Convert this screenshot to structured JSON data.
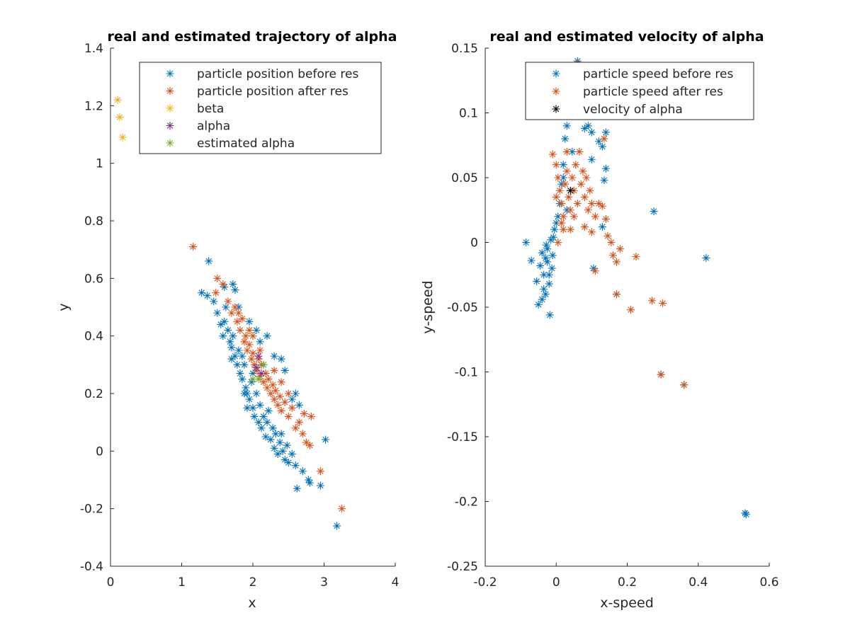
{
  "chart_data": [
    {
      "type": "scatter",
      "title": "real and estimated trajectory of alpha",
      "xlabel": "x",
      "ylabel": "y",
      "xlim": [
        0,
        4
      ],
      "ylim": [
        -0.4,
        1.4
      ],
      "xticks": [
        0,
        1,
        2,
        3,
        4
      ],
      "yticks": [
        -0.4,
        -0.2,
        0,
        0.2,
        0.4,
        0.6,
        0.8,
        1,
        1.2,
        1.4
      ],
      "xtick_labels": [
        "0",
        "1",
        "2",
        "3",
        "4"
      ],
      "ytick_labels": [
        "-0.4",
        "-0.2",
        "0",
        "0.2",
        "0.4",
        "0.6",
        "0.8",
        "1",
        "1.2",
        "1.4"
      ],
      "legend_position": "top-right",
      "series": [
        {
          "name": "particle position before res",
          "color": "#0072BD",
          "points": [
            [
              1.28,
              0.55
            ],
            [
              1.36,
              0.54
            ],
            [
              1.38,
              0.66
            ],
            [
              1.45,
              0.52
            ],
            [
              1.5,
              0.48
            ],
            [
              1.55,
              0.44
            ],
            [
              1.58,
              0.4
            ],
            [
              1.6,
              0.45
            ],
            [
              1.62,
              0.5
            ],
            [
              1.65,
              0.42
            ],
            [
              1.68,
              0.38
            ],
            [
              1.7,
              0.36
            ],
            [
              1.72,
              0.4
            ],
            [
              1.75,
              0.33
            ],
            [
              1.78,
              0.3
            ],
            [
              1.8,
              0.35
            ],
            [
              1.82,
              0.27
            ],
            [
              1.85,
              0.25
            ],
            [
              1.88,
              0.3
            ],
            [
              1.9,
              0.22
            ],
            [
              1.92,
              0.2
            ],
            [
              1.95,
              0.18
            ],
            [
              1.98,
              0.24
            ],
            [
              2.0,
              0.15
            ],
            [
              2.02,
              0.12
            ],
            [
              2.05,
              0.2
            ],
            [
              2.08,
              0.1
            ],
            [
              2.1,
              0.16
            ],
            [
              2.12,
              0.08
            ],
            [
              2.15,
              0.12
            ],
            [
              2.18,
              0.05
            ],
            [
              2.2,
              0.1
            ],
            [
              2.22,
              0.14
            ],
            [
              2.25,
              0.04
            ],
            [
              2.28,
              0.08
            ],
            [
              2.3,
              0.01
            ],
            [
              2.32,
              0.06
            ],
            [
              2.35,
              -0.01
            ],
            [
              2.38,
              0.03
            ],
            [
              2.4,
              0.06
            ],
            [
              2.42,
              0.0
            ],
            [
              2.45,
              -0.03
            ],
            [
              2.48,
              0.02
            ],
            [
              2.5,
              -0.04
            ],
            [
              2.55,
              -0.01
            ],
            [
              2.6,
              -0.05
            ],
            [
              2.62,
              -0.13
            ],
            [
              2.7,
              -0.07
            ],
            [
              2.78,
              -0.1
            ],
            [
              2.8,
              -0.11
            ],
            [
              2.95,
              -0.12
            ],
            [
              3.02,
              0.04
            ],
            [
              3.18,
              -0.26
            ],
            [
              2.55,
              0.18
            ],
            [
              2.6,
              0.2
            ],
            [
              2.65,
              0.16
            ],
            [
              2.4,
              0.32
            ],
            [
              2.45,
              0.28
            ],
            [
              2.3,
              0.33
            ],
            [
              2.2,
              0.4
            ],
            [
              1.75,
              0.56
            ],
            [
              1.72,
              0.58
            ],
            [
              1.6,
              0.57
            ],
            [
              1.8,
              0.5
            ],
            [
              1.95,
              0.45
            ],
            [
              2.05,
              0.42
            ],
            [
              2.1,
              0.38
            ],
            [
              2.15,
              0.3
            ],
            [
              1.88,
              0.2
            ],
            [
              1.92,
              0.15
            ],
            [
              2.0,
              0.27
            ],
            [
              1.7,
              0.32
            ],
            [
              1.85,
              0.33
            ]
          ]
        },
        {
          "name": "particle position after res",
          "color": "#D95319",
          "points": [
            [
              1.16,
              0.71
            ],
            [
              1.48,
              0.55
            ],
            [
              1.5,
              0.6
            ],
            [
              1.58,
              0.58
            ],
            [
              1.65,
              0.52
            ],
            [
              1.7,
              0.48
            ],
            [
              1.75,
              0.5
            ],
            [
              1.78,
              0.45
            ],
            [
              1.82,
              0.42
            ],
            [
              1.85,
              0.46
            ],
            [
              1.88,
              0.38
            ],
            [
              1.9,
              0.4
            ],
            [
              1.92,
              0.35
            ],
            [
              1.95,
              0.37
            ],
            [
              1.98,
              0.32
            ],
            [
              2.0,
              0.34
            ],
            [
              2.02,
              0.3
            ],
            [
              2.05,
              0.28
            ],
            [
              2.08,
              0.32
            ],
            [
              2.1,
              0.26
            ],
            [
              2.12,
              0.3
            ],
            [
              2.15,
              0.24
            ],
            [
              2.18,
              0.27
            ],
            [
              2.2,
              0.22
            ],
            [
              2.22,
              0.25
            ],
            [
              2.25,
              0.2
            ],
            [
              2.28,
              0.23
            ],
            [
              2.3,
              0.18
            ],
            [
              2.32,
              0.21
            ],
            [
              2.35,
              0.16
            ],
            [
              2.38,
              0.19
            ],
            [
              2.4,
              0.14
            ],
            [
              2.45,
              0.17
            ],
            [
              2.5,
              0.12
            ],
            [
              2.55,
              0.15
            ],
            [
              2.6,
              0.08
            ],
            [
              2.65,
              0.1
            ],
            [
              2.7,
              0.06
            ],
            [
              2.75,
              0.03
            ],
            [
              2.8,
              0.02
            ],
            [
              2.82,
              0.12
            ],
            [
              2.72,
              0.13
            ],
            [
              2.95,
              -0.07
            ],
            [
              3.25,
              -0.2
            ],
            [
              2.0,
              0.4
            ],
            [
              2.1,
              0.35
            ],
            [
              2.3,
              0.28
            ],
            [
              2.4,
              0.24
            ],
            [
              2.5,
              0.2
            ],
            [
              1.8,
              0.48
            ],
            [
              1.95,
              0.42
            ]
          ]
        },
        {
          "name": "beta",
          "color": "#EDB120",
          "points": [
            [
              0.1,
              1.22
            ],
            [
              0.13,
              1.16
            ],
            [
              0.17,
              1.09
            ]
          ]
        },
        {
          "name": "alpha",
          "color": "#7E2F8E",
          "points": [
            [
              2.08,
              0.33
            ],
            [
              2.05,
              0.29
            ],
            [
              2.12,
              0.27
            ]
          ]
        },
        {
          "name": "estimated alpha",
          "color": "#77AC30",
          "points": [
            [
              2.0,
              0.25
            ],
            [
              2.08,
              0.25
            ],
            [
              2.15,
              0.3
            ]
          ]
        }
      ]
    },
    {
      "type": "scatter",
      "title": "real and estimated velocity of alpha",
      "xlabel": "x-speed",
      "ylabel": "y-speed",
      "xlim": [
        -0.2,
        0.6
      ],
      "ylim": [
        -0.25,
        0.15
      ],
      "xticks": [
        -0.2,
        0,
        0.2,
        0.4,
        0.6
      ],
      "yticks": [
        -0.25,
        -0.2,
        -0.15,
        -0.1,
        -0.05,
        0,
        0.05,
        0.1,
        0.15
      ],
      "xtick_labels": [
        "-0.2",
        "0",
        "0.2",
        "0.4",
        "0.6"
      ],
      "ytick_labels": [
        "-0.25",
        "-0.2",
        "-0.15",
        "-0.1",
        "-0.05",
        "0",
        "0.05",
        "0.1",
        "0.15"
      ],
      "legend_position": "top-right",
      "series": [
        {
          "name": "particle speed before res",
          "color": "#0072BD",
          "points": [
            [
              -0.085,
              0.0
            ],
            [
              -0.07,
              -0.014
            ],
            [
              -0.055,
              -0.03
            ],
            [
              -0.05,
              -0.048
            ],
            [
              -0.045,
              -0.018
            ],
            [
              -0.04,
              -0.008
            ],
            [
              -0.035,
              -0.025
            ],
            [
              -0.03,
              -0.04
            ],
            [
              -0.028,
              -0.002
            ],
            [
              -0.025,
              -0.015
            ],
            [
              -0.02,
              -0.032
            ],
            [
              -0.018,
              -0.056
            ],
            [
              -0.015,
              0.002
            ],
            [
              -0.012,
              -0.02
            ],
            [
              -0.01,
              -0.01
            ],
            [
              -0.008,
              0.004
            ],
            [
              -0.005,
              0.01
            ],
            [
              0.0,
              0.015
            ],
            [
              0.005,
              0.02
            ],
            [
              0.01,
              0.03
            ],
            [
              0.015,
              0.045
            ],
            [
              0.02,
              0.06
            ],
            [
              0.025,
              0.08
            ],
            [
              0.03,
              0.09
            ],
            [
              0.04,
              0.1
            ],
            [
              0.05,
              0.112
            ],
            [
              0.06,
              0.14
            ],
            [
              0.07,
              0.1
            ],
            [
              0.08,
              0.088
            ],
            [
              0.09,
              0.09
            ],
            [
              0.1,
              0.085
            ],
            [
              0.1,
              0.064
            ],
            [
              0.12,
              0.078
            ],
            [
              0.13,
              0.074
            ],
            [
              0.135,
              0.048
            ],
            [
              0.14,
              0.057
            ],
            [
              0.14,
              0.085
            ],
            [
              0.13,
              0.012
            ],
            [
              0.105,
              -0.02
            ],
            [
              0.17,
              -0.04
            ],
            [
              0.275,
              0.024
            ],
            [
              0.295,
              -0.102
            ],
            [
              0.36,
              -0.11
            ],
            [
              0.422,
              -0.012
            ],
            [
              0.532,
              -0.209
            ],
            [
              0.535,
              -0.21
            ],
            [
              -0.02,
              -0.025
            ],
            [
              -0.03,
              -0.012
            ],
            [
              -0.025,
              -0.005
            ],
            [
              -0.035,
              -0.036
            ],
            [
              -0.04,
              -0.044
            ],
            [
              0.02,
              0.05
            ],
            [
              0.03,
              0.025
            ],
            [
              0.045,
              0.07
            ]
          ]
        },
        {
          "name": "particle speed after res",
          "color": "#D95319",
          "points": [
            [
              -0.01,
              0.068
            ],
            [
              0.0,
              0.06
            ],
            [
              0.005,
              0.05
            ],
            [
              0.01,
              0.04
            ],
            [
              0.015,
              0.03
            ],
            [
              0.02,
              0.02
            ],
            [
              0.025,
              0.045
            ],
            [
              0.03,
              0.055
            ],
            [
              0.035,
              0.035
            ],
            [
              0.04,
              0.025
            ],
            [
              0.045,
              0.05
            ],
            [
              0.05,
              0.04
            ],
            [
              0.055,
              0.06
            ],
            [
              0.06,
              0.03
            ],
            [
              0.065,
              0.07
            ],
            [
              0.07,
              0.045
            ],
            [
              0.075,
              0.055
            ],
            [
              0.08,
              0.035
            ],
            [
              0.085,
              0.05
            ],
            [
              0.09,
              0.025
            ],
            [
              0.095,
              0.04
            ],
            [
              0.1,
              0.03
            ],
            [
              0.11,
              0.02
            ],
            [
              0.12,
              0.03
            ],
            [
              0.13,
              0.028
            ],
            [
              0.135,
              0.08
            ],
            [
              0.14,
              0.018
            ],
            [
              0.145,
              0.005
            ],
            [
              0.155,
              0.0
            ],
            [
              0.16,
              -0.01
            ],
            [
              0.17,
              -0.015
            ],
            [
              0.18,
              -0.005
            ],
            [
              0.17,
              -0.04
            ],
            [
              0.21,
              -0.052
            ],
            [
              0.225,
              -0.011
            ],
            [
              0.27,
              -0.045
            ],
            [
              0.295,
              -0.102
            ],
            [
              0.3,
              -0.047
            ],
            [
              0.36,
              -0.11
            ],
            [
              0.02,
              0.01
            ],
            [
              0.005,
              0.0
            ],
            [
              0.11,
              -0.022
            ],
            [
              0.06,
              0.138
            ],
            [
              0.03,
              0.07
            ],
            [
              0.05,
              0.02
            ],
            [
              0.08,
              0.012
            ],
            [
              0.1,
              0.008
            ],
            [
              0.0,
              0.035
            ],
            [
              0.015,
              0.015
            ],
            [
              0.04,
              0.01
            ]
          ]
        },
        {
          "name": "velocity of alpha",
          "color": "#000000",
          "points": [
            [
              0.04,
              0.04
            ]
          ]
        }
      ]
    }
  ]
}
